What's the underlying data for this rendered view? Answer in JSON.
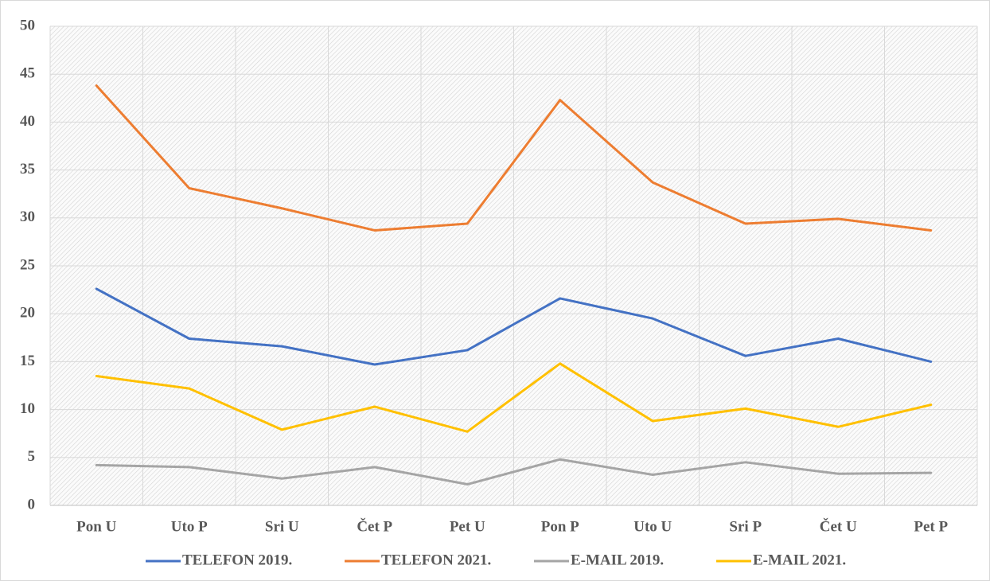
{
  "chart_data": {
    "type": "line",
    "categories": [
      "Pon U",
      "Uto P",
      "Sri U",
      "Čet P",
      "Pet U",
      "Pon P",
      "Uto U",
      "Sri P",
      "Čet U",
      "Pet P"
    ],
    "series": [
      {
        "name": "TELEFON 2019.",
        "color": "#4472c4",
        "values": [
          22.6,
          17.4,
          16.6,
          14.7,
          16.2,
          21.6,
          19.5,
          15.6,
          17.4,
          15.0
        ]
      },
      {
        "name": "TELEFON 2021.",
        "color": "#ed7d31",
        "values": [
          43.8,
          33.1,
          31.0,
          28.7,
          29.4,
          42.3,
          33.7,
          29.4,
          29.9,
          28.7
        ]
      },
      {
        "name": "E-MAIL 2019.",
        "color": "#a5a5a5",
        "values": [
          4.2,
          4.0,
          2.8,
          4.0,
          2.2,
          4.8,
          3.2,
          4.5,
          3.3,
          3.4
        ]
      },
      {
        "name": "E-MAIL 2021.",
        "color": "#ffc000",
        "values": [
          13.5,
          12.2,
          7.9,
          10.3,
          7.7,
          14.8,
          8.8,
          10.1,
          8.2,
          10.5
        ]
      }
    ],
    "ylim": [
      0,
      50
    ],
    "yticks": [
      0,
      5,
      10,
      15,
      20,
      25,
      30,
      35,
      40,
      45,
      50
    ],
    "grid": true,
    "legend": "bottom"
  }
}
